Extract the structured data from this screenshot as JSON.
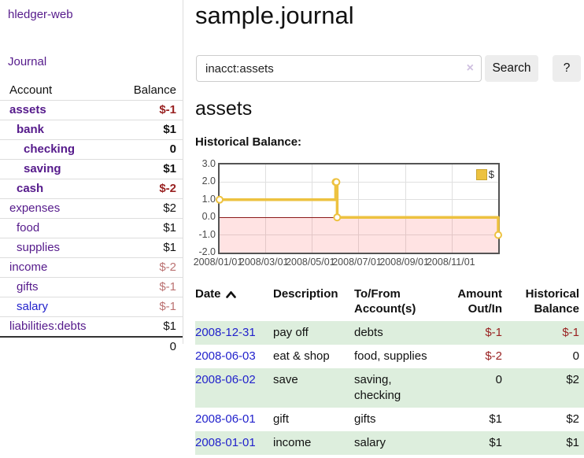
{
  "sidebar": {
    "brand": "hledger-web",
    "journal_link": "Journal",
    "accounts_table": {
      "headers": {
        "account": "Account",
        "balance": "Balance"
      },
      "rows": [
        {
          "name": "assets",
          "balance": "$-1",
          "level": 0,
          "bold": true,
          "link_color": "purple",
          "balance_style": "neg-strong"
        },
        {
          "name": "bank",
          "balance": "$1",
          "level": 1,
          "bold": true,
          "link_color": "purple",
          "balance_style": "pos"
        },
        {
          "name": "checking",
          "balance": "0",
          "level": 2,
          "bold": true,
          "link_color": "purple",
          "balance_style": "pos"
        },
        {
          "name": "saving",
          "balance": "$1",
          "level": 2,
          "bold": true,
          "link_color": "purple",
          "balance_style": "pos"
        },
        {
          "name": "cash",
          "balance": "$-2",
          "level": 1,
          "bold": true,
          "link_color": "purple",
          "balance_style": "neg-strong"
        },
        {
          "name": "expenses",
          "balance": "$2",
          "level": 0,
          "bold": false,
          "link_color": "purple",
          "balance_style": "pos"
        },
        {
          "name": "food",
          "balance": "$1",
          "level": 1,
          "bold": false,
          "link_color": "purple",
          "balance_style": "pos"
        },
        {
          "name": "supplies",
          "balance": "$1",
          "level": 1,
          "bold": false,
          "link_color": "purple",
          "balance_style": "pos"
        },
        {
          "name": "income",
          "balance": "$-2",
          "level": 0,
          "bold": false,
          "link_color": "purple",
          "balance_style": "neg-muted"
        },
        {
          "name": "gifts",
          "balance": "$-1",
          "level": 1,
          "bold": false,
          "link_color": "purple",
          "balance_style": "neg-muted"
        },
        {
          "name": "salary",
          "balance": "$-1",
          "level": 1,
          "bold": false,
          "link_color": "blue",
          "balance_style": "neg-muted"
        },
        {
          "name": "liabilities:debts",
          "balance": "$1",
          "level": 0,
          "bold": false,
          "link_color": "purple",
          "balance_style": "pos"
        }
      ],
      "total": "0"
    }
  },
  "header": {
    "title": "sample.journal"
  },
  "search": {
    "value": "inacct:assets",
    "clear_label": "×",
    "search_button": "Search",
    "help_button": "?"
  },
  "account_page": {
    "title": "assets",
    "chart_label": "Historical Balance:"
  },
  "chart_data": {
    "type": "line",
    "title": "Historical Balance",
    "series": [
      {
        "name": "$",
        "color": "#edc240",
        "steps": true,
        "points": [
          [
            "2008-01-01",
            1
          ],
          [
            "2008-06-01",
            2
          ],
          [
            "2008-06-02",
            2
          ],
          [
            "2008-06-03",
            0
          ],
          [
            "2008-12-31",
            -1
          ]
        ]
      }
    ],
    "x_range": [
      "2008-01-01",
      "2008-12-31"
    ],
    "y_range": [
      -2,
      3
    ],
    "x_ticks": [
      {
        "date": "2008-01-01",
        "label": "2008/01/01"
      },
      {
        "date": "2008-03-01",
        "label": "2008/03/01"
      },
      {
        "date": "2008-05-01",
        "label": "2008/05/01"
      },
      {
        "date": "2008-07-01",
        "label": "2008/07/01"
      },
      {
        "date": "2008-09-01",
        "label": "2008/09/01"
      },
      {
        "date": "2008-11-01",
        "label": "2008/11/01"
      }
    ],
    "y_ticks": [
      {
        "value": 3,
        "label": "3.0"
      },
      {
        "value": 2,
        "label": "2.0"
      },
      {
        "value": 1,
        "label": "1.0"
      },
      {
        "value": 0,
        "label": "0.0"
      },
      {
        "value": -1,
        "label": "-1.0"
      },
      {
        "value": -2,
        "label": "-2.0"
      }
    ],
    "grid": true,
    "legend": {
      "label": "$",
      "position": "top-right"
    },
    "negative_region_color": "rgba(255,0,0,0.11)",
    "zero_line_color": "#8b1a1a"
  },
  "register_table": {
    "headers": {
      "date": "Date",
      "description": "Description",
      "accounts": "To/From Account(s)",
      "amount": "Amount Out/In",
      "balance": "Historical Balance"
    },
    "rows": [
      {
        "date": "2008-12-31",
        "description": "pay off",
        "accounts": "debts",
        "amount": "$-1",
        "balance": "$-1",
        "amount_negative": true,
        "balance_negative": true,
        "shaded": true
      },
      {
        "date": "2008-06-03",
        "description": "eat & shop",
        "accounts": "food, supplies",
        "amount": "$-2",
        "balance": "0",
        "amount_negative": true,
        "balance_negative": false,
        "shaded": false
      },
      {
        "date": "2008-06-02",
        "description": "save",
        "accounts": "saving, checking",
        "amount": "0",
        "balance": "$2",
        "amount_negative": false,
        "balance_negative": false,
        "shaded": true
      },
      {
        "date": "2008-06-01",
        "description": "gift",
        "accounts": "gifts",
        "amount": "$1",
        "balance": "$2",
        "amount_negative": false,
        "balance_negative": false,
        "shaded": false
      },
      {
        "date": "2008-01-01",
        "description": "income",
        "accounts": "salary",
        "amount": "$1",
        "balance": "$1",
        "amount_negative": false,
        "balance_negative": false,
        "shaded": true
      }
    ]
  },
  "colors": {
    "link_purple": "#551a8b",
    "link_blue": "#2222cc",
    "negative_strong": "#992222",
    "negative_muted": "#bb7272",
    "row_shade_green": "#ddeedd",
    "chart_series_gold": "#edc240",
    "chart_border": "#545454",
    "zero_line": "#8b1a1a"
  }
}
